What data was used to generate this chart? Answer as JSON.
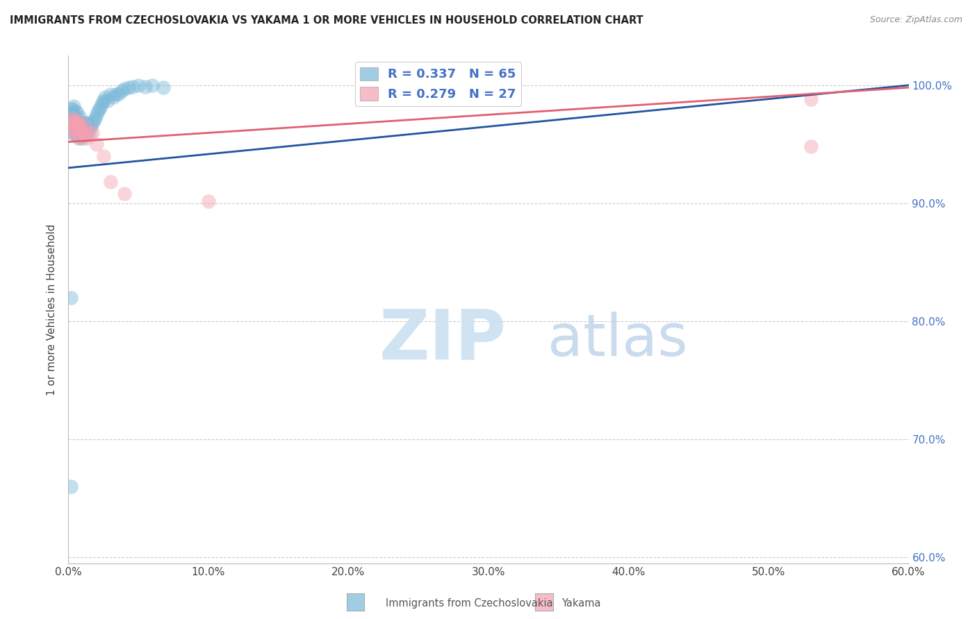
{
  "title": "IMMIGRANTS FROM CZECHOSLOVAKIA VS YAKAMA 1 OR MORE VEHICLES IN HOUSEHOLD CORRELATION CHART",
  "source": "Source: ZipAtlas.com",
  "ylabel": "1 or more Vehicles in Household",
  "xlim": [
    0.0,
    0.6
  ],
  "ylim": [
    0.595,
    1.025
  ],
  "yticks": [
    0.6,
    0.7,
    0.8,
    0.9,
    1.0
  ],
  "ytick_labels": [
    "60.0%",
    "70.0%",
    "80.0%",
    "90.0%",
    "100.0%"
  ],
  "xticks": [
    0.0,
    0.1,
    0.2,
    0.3,
    0.4,
    0.5,
    0.6
  ],
  "xtick_labels": [
    "0.0%",
    "10.0%",
    "20.0%",
    "30.0%",
    "40.0%",
    "50.0%",
    "60.0%"
  ],
  "blue_R": 0.337,
  "blue_N": 65,
  "pink_R": 0.279,
  "pink_N": 27,
  "blue_color": "#7ab8d9",
  "pink_color": "#f5a0b0",
  "blue_line_color": "#2255a0",
  "pink_line_color": "#e06070",
  "legend_blue_label": "Immigrants from Czechoslovakia",
  "legend_pink_label": "Yakama",
  "blue_x": [
    0.001,
    0.001,
    0.002,
    0.002,
    0.002,
    0.003,
    0.003,
    0.003,
    0.003,
    0.003,
    0.004,
    0.004,
    0.004,
    0.004,
    0.005,
    0.005,
    0.005,
    0.005,
    0.006,
    0.006,
    0.006,
    0.006,
    0.007,
    0.007,
    0.007,
    0.008,
    0.008,
    0.008,
    0.009,
    0.009,
    0.01,
    0.01,
    0.011,
    0.011,
    0.012,
    0.013,
    0.013,
    0.014,
    0.015,
    0.016,
    0.017,
    0.018,
    0.019,
    0.02,
    0.021,
    0.022,
    0.023,
    0.024,
    0.025,
    0.026,
    0.028,
    0.03,
    0.032,
    0.034,
    0.036,
    0.038,
    0.04,
    0.043,
    0.046,
    0.05,
    0.055,
    0.06,
    0.068,
    0.002,
    0.002
  ],
  "blue_y": [
    0.965,
    0.972,
    0.968,
    0.975,
    0.98,
    0.96,
    0.965,
    0.97,
    0.975,
    0.98,
    0.962,
    0.968,
    0.975,
    0.982,
    0.958,
    0.965,
    0.972,
    0.978,
    0.958,
    0.963,
    0.97,
    0.977,
    0.955,
    0.963,
    0.97,
    0.958,
    0.965,
    0.973,
    0.96,
    0.968,
    0.955,
    0.965,
    0.958,
    0.968,
    0.962,
    0.958,
    0.968,
    0.965,
    0.962,
    0.965,
    0.968,
    0.97,
    0.972,
    0.975,
    0.978,
    0.98,
    0.982,
    0.985,
    0.987,
    0.99,
    0.987,
    0.992,
    0.99,
    0.992,
    0.993,
    0.995,
    0.997,
    0.998,
    0.999,
    1.0,
    0.999,
    1.0,
    0.998,
    0.82,
    0.66
  ],
  "pink_x": [
    0.001,
    0.002,
    0.003,
    0.004,
    0.004,
    0.005,
    0.005,
    0.006,
    0.006,
    0.007,
    0.007,
    0.008,
    0.008,
    0.009,
    0.01,
    0.011,
    0.012,
    0.013,
    0.015,
    0.017,
    0.02,
    0.025,
    0.03,
    0.04,
    0.1,
    0.53,
    0.53
  ],
  "pink_y": [
    0.965,
    0.968,
    0.972,
    0.962,
    0.97,
    0.958,
    0.968,
    0.962,
    0.97,
    0.958,
    0.968,
    0.955,
    0.965,
    0.962,
    0.96,
    0.958,
    0.965,
    0.955,
    0.958,
    0.96,
    0.95,
    0.94,
    0.918,
    0.908,
    0.902,
    0.948,
    0.988
  ],
  "blue_trend_x0": 0.0,
  "blue_trend_y0": 0.93,
  "blue_trend_x1": 0.6,
  "blue_trend_y1": 1.0,
  "pink_trend_x0": 0.0,
  "pink_trend_y0": 0.952,
  "pink_trend_x1": 0.6,
  "pink_trend_y1": 0.998,
  "watermark_zip": "ZIP",
  "watermark_atlas": "atlas",
  "background_color": "#ffffff",
  "grid_color": "#cccccc"
}
